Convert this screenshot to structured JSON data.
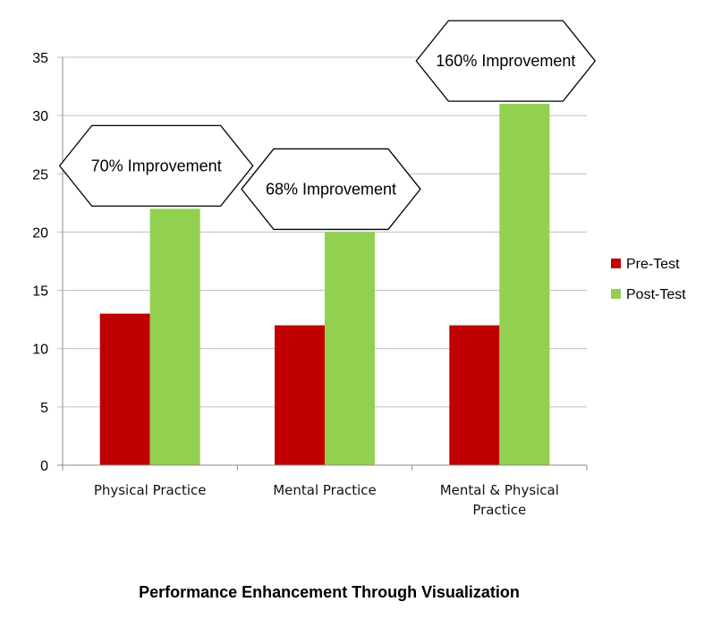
{
  "chart_data": {
    "type": "bar",
    "title": "Performance Enhancement Through Visualization",
    "xlabel": "",
    "ylabel": "",
    "ylim": [
      0,
      35
    ],
    "yticks": [
      0,
      5,
      10,
      15,
      20,
      25,
      30,
      35
    ],
    "grid": true,
    "legend_position": "right",
    "categories": [
      [
        "Physical Practice"
      ],
      [
        "Mental Practice"
      ],
      [
        "Mental & Physical",
        "Practice"
      ]
    ],
    "series": [
      {
        "name": "Pre-Test",
        "color": "#c00000",
        "values": [
          13,
          12,
          12
        ]
      },
      {
        "name": "Post-Test",
        "color": "#92d050",
        "values": [
          22,
          20,
          31
        ]
      }
    ],
    "annotations": [
      "70% Improvement",
      "68% Improvement",
      "160% Improvement"
    ]
  }
}
